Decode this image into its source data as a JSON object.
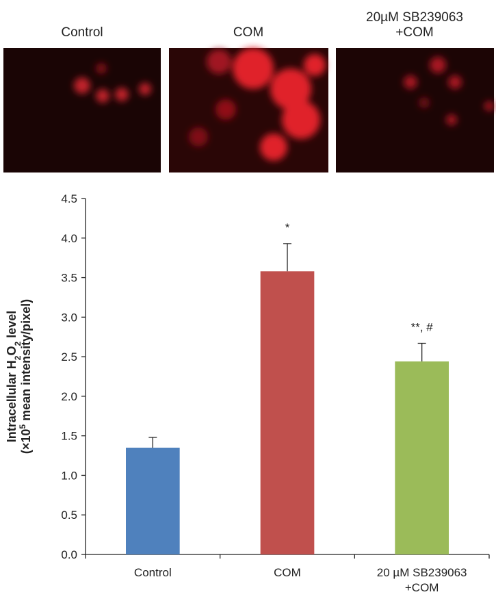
{
  "panels": [
    "Control",
    "COM",
    "20µM SB239063\n+COM"
  ],
  "chart_data": {
    "type": "bar",
    "y_label": {
      "line1": [
        "Intracellular H",
        "2",
        "O",
        "2",
        " level"
      ],
      "line2": [
        "(×10",
        "5",
        " mean intensity/pixel)"
      ]
    },
    "categories": [
      "Control",
      "COM",
      "20 µM SB239063\n+COM"
    ],
    "values": [
      1.35,
      3.58,
      2.44
    ],
    "errors": [
      0.13,
      0.35,
      0.23
    ],
    "colors": [
      "#4f81bd",
      "#c0504d",
      "#9bbb59"
    ],
    "annotations": [
      null,
      "*",
      "**, #"
    ],
    "ylim": [
      0,
      4.5
    ],
    "yticks": [
      {
        "value": 0,
        "label": "0.0"
      },
      0.5,
      {
        "value": 1,
        "label": "1.0"
      },
      1.5,
      {
        "value": 2,
        "label": "2.0"
      },
      2.5,
      {
        "value": 3,
        "label": "3.0"
      },
      3.5,
      {
        "value": 4,
        "label": "4.0"
      },
      4.5
    ]
  }
}
